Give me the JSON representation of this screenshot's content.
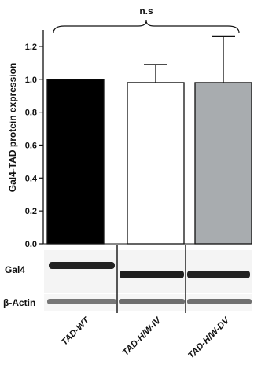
{
  "chart_data": {
    "type": "bar",
    "ylabel": "Gal4-TAD protein expression",
    "ylim": [
      0,
      1.3
    ],
    "yticks": [
      "0.0",
      "0.2",
      "0.4",
      "0.6",
      "0.8",
      "1.0",
      "1.2"
    ],
    "categories": [
      "TAD-WT",
      "TAD-H/W-IV",
      "TAD-H/W-DV"
    ],
    "values": [
      1.0,
      0.98,
      0.98
    ],
    "errors": [
      0,
      0.11,
      0.28
    ],
    "bar_colors": [
      "#000000",
      "#ffffff",
      "#a8acaf"
    ],
    "significance": "n.s",
    "grid": false
  },
  "blot": {
    "rows": [
      "Gal4",
      "β-Actin"
    ]
  }
}
